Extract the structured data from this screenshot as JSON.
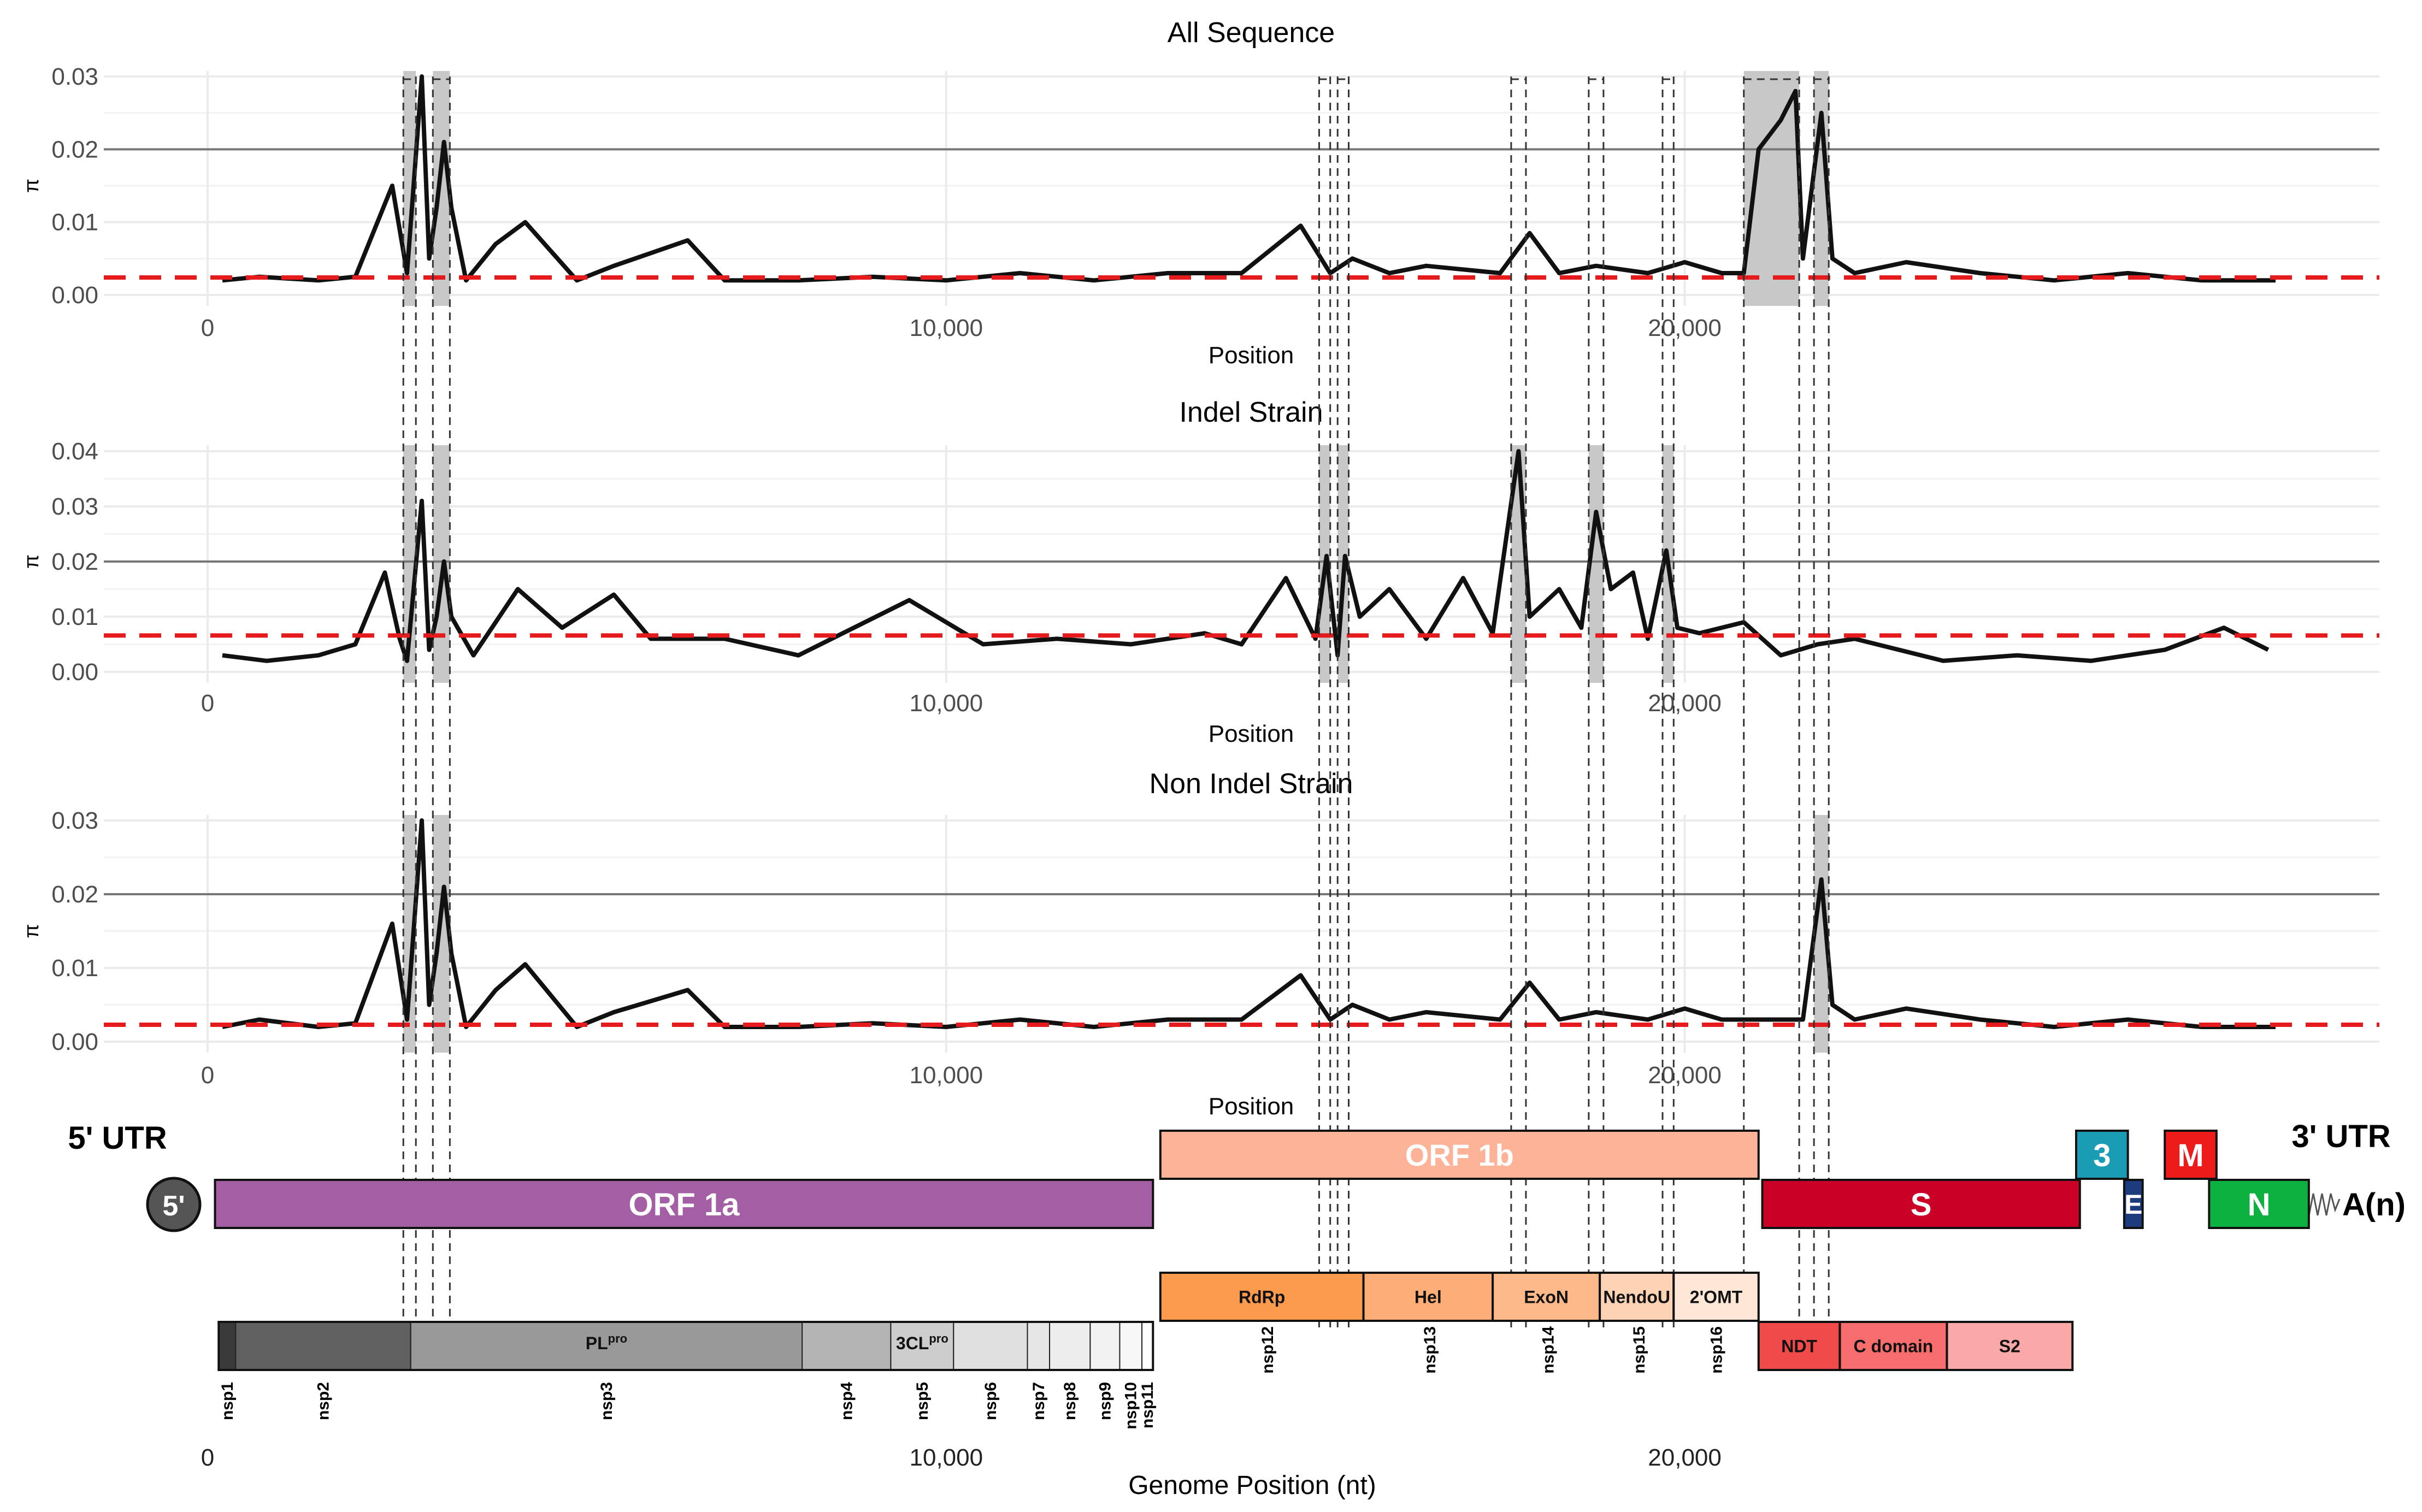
{
  "figure": {
    "genome_xlabel": "Genome Position (nt)",
    "utr5_label": "5' UTR",
    "utr3_label": "3' UTR",
    "cap_label": "5'",
    "polya_label": "A(n)",
    "genome_ticks": [
      0,
      10000,
      20000
    ],
    "genome_tick_labels": [
      "0",
      "10,000",
      "20,000"
    ]
  },
  "chart_data": [
    {
      "type": "line",
      "title": "All Sequence",
      "xlabel": "Position",
      "ylabel": "π",
      "ylim": [
        0,
        0.03
      ],
      "yticks": [
        0.0,
        0.01,
        0.02,
        0.03
      ],
      "ytick_labels": [
        "0.00",
        "0.01",
        "0.02",
        "0.03"
      ],
      "xticks": [
        0,
        10000,
        20000
      ],
      "xtick_labels": [
        "0",
        "10,000",
        "20,000"
      ],
      "threshold": 0.0024,
      "reference_line": 0.02,
      "highlight_regions": [
        [
          2650,
          2820
        ],
        [
          3050,
          3280
        ],
        [
          20800,
          21550
        ],
        [
          21750,
          21950
        ]
      ],
      "x": [
        200,
        700,
        1500,
        2000,
        2500,
        2700,
        2900,
        3000,
        3100,
        3200,
        3300,
        3500,
        3900,
        4300,
        5000,
        5500,
        6500,
        7000,
        8000,
        9000,
        10000,
        11000,
        12000,
        13000,
        14000,
        14800,
        15200,
        15500,
        16000,
        16500,
        17500,
        17900,
        18300,
        18800,
        19500,
        20000,
        20500,
        20800,
        21000,
        21300,
        21500,
        21600,
        21850,
        22000,
        22300,
        23000,
        24000,
        25000,
        26000,
        27000,
        28000
      ],
      "y": [
        0.002,
        0.0025,
        0.002,
        0.0025,
        0.015,
        0.003,
        0.03,
        0.005,
        0.012,
        0.021,
        0.012,
        0.002,
        0.007,
        0.01,
        0.002,
        0.004,
        0.0075,
        0.002,
        0.002,
        0.0025,
        0.002,
        0.003,
        0.002,
        0.003,
        0.003,
        0.0095,
        0.003,
        0.005,
        0.003,
        0.004,
        0.003,
        0.0085,
        0.003,
        0.004,
        0.003,
        0.0045,
        0.003,
        0.003,
        0.02,
        0.024,
        0.028,
        0.005,
        0.025,
        0.005,
        0.003,
        0.0045,
        0.003,
        0.002,
        0.003,
        0.002,
        0.002
      ]
    },
    {
      "type": "line",
      "title": "Indel Strain",
      "xlabel": "Position",
      "ylabel": "π",
      "ylim": [
        0,
        0.04
      ],
      "yticks": [
        0.0,
        0.01,
        0.02,
        0.03,
        0.04
      ],
      "ytick_labels": [
        "0.00",
        "0.01",
        "0.02",
        "0.03",
        "0.04"
      ],
      "xticks": [
        0,
        10000,
        20000
      ],
      "xtick_labels": [
        "0",
        "10,000",
        "20,000"
      ],
      "threshold": 0.0066,
      "reference_line": 0.02,
      "highlight_regions": [
        [
          2650,
          2820
        ],
        [
          3050,
          3280
        ],
        [
          15050,
          15200
        ],
        [
          15300,
          15450
        ],
        [
          17650,
          17850
        ],
        [
          18700,
          18900
        ],
        [
          19700,
          19850
        ]
      ],
      "x": [
        200,
        800,
        1500,
        2000,
        2400,
        2600,
        2700,
        2900,
        3000,
        3100,
        3200,
        3300,
        3600,
        4200,
        4800,
        5500,
        6000,
        7000,
        8000,
        9500,
        10500,
        11500,
        12500,
        13500,
        14000,
        14600,
        15000,
        15150,
        15300,
        15400,
        15600,
        16000,
        16500,
        17000,
        17400,
        17750,
        17900,
        18300,
        18600,
        18800,
        19000,
        19300,
        19500,
        19750,
        19900,
        20200,
        20800,
        21300,
        21800,
        22300,
        23500,
        24500,
        25500,
        26500,
        27300,
        27900
      ],
      "y": [
        0.003,
        0.002,
        0.003,
        0.005,
        0.018,
        0.006,
        0.002,
        0.031,
        0.004,
        0.01,
        0.02,
        0.01,
        0.003,
        0.015,
        0.008,
        0.014,
        0.006,
        0.006,
        0.003,
        0.013,
        0.005,
        0.006,
        0.005,
        0.007,
        0.005,
        0.017,
        0.006,
        0.021,
        0.003,
        0.021,
        0.01,
        0.015,
        0.006,
        0.017,
        0.007,
        0.04,
        0.01,
        0.015,
        0.008,
        0.029,
        0.015,
        0.018,
        0.006,
        0.022,
        0.008,
        0.007,
        0.009,
        0.003,
        0.005,
        0.006,
        0.002,
        0.003,
        0.002,
        0.004,
        0.008,
        0.004
      ]
    },
    {
      "type": "line",
      "title": "Non Indel Strain",
      "xlabel": "Position",
      "ylabel": "π",
      "ylim": [
        0,
        0.03
      ],
      "yticks": [
        0.0,
        0.01,
        0.02,
        0.03
      ],
      "ytick_labels": [
        "0.00",
        "0.01",
        "0.02",
        "0.03"
      ],
      "xticks": [
        0,
        10000,
        20000
      ],
      "xtick_labels": [
        "0",
        "10,000",
        "20,000"
      ],
      "threshold": 0.0023,
      "reference_line": 0.02,
      "highlight_regions": [
        [
          2650,
          2820
        ],
        [
          3050,
          3280
        ],
        [
          21750,
          21950
        ]
      ],
      "x": [
        200,
        700,
        1500,
        2000,
        2500,
        2700,
        2900,
        3000,
        3100,
        3200,
        3300,
        3500,
        3900,
        4300,
        5000,
        5500,
        6500,
        7000,
        8000,
        9000,
        10000,
        11000,
        12000,
        13000,
        14000,
        14800,
        15200,
        15500,
        16000,
        16500,
        17500,
        17900,
        18300,
        18800,
        19500,
        20000,
        20500,
        20800,
        21000,
        21300,
        21600,
        21850,
        22000,
        22300,
        23000,
        24000,
        25000,
        26000,
        27000,
        28000
      ],
      "y": [
        0.002,
        0.003,
        0.002,
        0.0025,
        0.016,
        0.003,
        0.03,
        0.005,
        0.012,
        0.021,
        0.012,
        0.002,
        0.007,
        0.0105,
        0.002,
        0.004,
        0.007,
        0.002,
        0.002,
        0.0025,
        0.002,
        0.003,
        0.002,
        0.003,
        0.003,
        0.009,
        0.003,
        0.005,
        0.003,
        0.004,
        0.003,
        0.008,
        0.003,
        0.004,
        0.003,
        0.0045,
        0.003,
        0.003,
        0.003,
        0.003,
        0.003,
        0.022,
        0.005,
        0.003,
        0.0045,
        0.003,
        0.002,
        0.003,
        0.002,
        0.002
      ]
    }
  ],
  "genome": {
    "length": 28000,
    "orf_row1": [
      {
        "label": "ORF 1b",
        "start": 12900,
        "end": 21000,
        "color": "#FDB398"
      },
      {
        "label": "3",
        "start": 25300,
        "end": 26000,
        "color": "#1A9CB5"
      },
      {
        "label": "M",
        "start": 26500,
        "end": 27200,
        "color": "#EE1B1B"
      }
    ],
    "orf_row2": [
      {
        "label": "ORF 1a",
        "start": 100,
        "end": 12800,
        "color": "#A35EA4"
      },
      {
        "label": "S",
        "start": 21050,
        "end": 25350,
        "color": "#CB0027"
      },
      {
        "label": "E",
        "start": 25950,
        "end": 26200,
        "color": "#1D3C7E"
      },
      {
        "label": "N",
        "start": 27100,
        "end": 28450,
        "color": "#0DB140"
      }
    ],
    "domains_1b": [
      {
        "label": "RdRp",
        "start": 12900,
        "end": 15650,
        "color": "#FC9B4E"
      },
      {
        "label": "Hel",
        "start": 15650,
        "end": 17400,
        "color": "#FDAE77"
      },
      {
        "label": "ExoN",
        "start": 17400,
        "end": 18850,
        "color": "#FDB98A"
      },
      {
        "label": "NendoU",
        "start": 18850,
        "end": 19850,
        "color": "#FED2B4"
      },
      {
        "label": "2'OMT",
        "start": 19850,
        "end": 21000,
        "color": "#FEE7D7"
      }
    ],
    "domains_s": [
      {
        "label": "NDT",
        "start": 21000,
        "end": 22100,
        "color": "#F14A4A"
      },
      {
        "label": "C domain",
        "start": 22100,
        "end": 23550,
        "color": "#F76C6C"
      },
      {
        "label": "S2",
        "start": 23550,
        "end": 25250,
        "color": "#FBA8A8"
      }
    ],
    "nsp_blocks": [
      {
        "label": "nsp1",
        "sup": "",
        "start": 150,
        "end": 380,
        "color": "#3A3A3A"
      },
      {
        "label": "nsp2",
        "sup": "",
        "start": 380,
        "end": 2750,
        "color": "#606060"
      },
      {
        "label": "nsp3",
        "inner": "PL",
        "sup": "pro",
        "start": 2750,
        "end": 8050,
        "color": "#999999"
      },
      {
        "label": "nsp4",
        "sup": "",
        "start": 8050,
        "end": 9250,
        "color": "#B4B4B4"
      },
      {
        "label": "nsp5",
        "inner": "3CL",
        "sup": "pro",
        "start": 9250,
        "end": 10100,
        "color": "#CDCDCD"
      },
      {
        "label": "nsp6",
        "sup": "",
        "start": 10100,
        "end": 11100,
        "color": "#E0E0E0"
      },
      {
        "label": "nsp7",
        "sup": "",
        "start": 11100,
        "end": 11400,
        "color": "#E6E6E6"
      },
      {
        "label": "nsp8",
        "sup": "",
        "start": 11400,
        "end": 11950,
        "color": "#EDEDED"
      },
      {
        "label": "nsp9",
        "sup": "",
        "start": 11950,
        "end": 12350,
        "color": "#F2F2F2"
      },
      {
        "label": "nsp10",
        "sup": "",
        "start": 12350,
        "end": 12650,
        "color": "#F7F7F7"
      },
      {
        "label": "nsp11",
        "sup": "",
        "start": 12650,
        "end": 12800,
        "color": "#FFFFFF"
      }
    ],
    "nsp_1b_labels": [
      {
        "label": "nsp12",
        "pos": 14350
      },
      {
        "label": "nsp13",
        "pos": 16550
      },
      {
        "label": "nsp14",
        "pos": 18150
      },
      {
        "label": "nsp15",
        "pos": 19380
      },
      {
        "label": "nsp16",
        "pos": 20430
      }
    ],
    "dashed_links": [
      [
        2650,
        2820
      ],
      [
        3050,
        3280
      ],
      [
        15050,
        15200
      ],
      [
        15300,
        15450
      ],
      [
        17650,
        17850
      ],
      [
        18700,
        18900
      ],
      [
        19700,
        19850
      ],
      [
        20800,
        21550
      ],
      [
        21750,
        21950
      ]
    ]
  }
}
